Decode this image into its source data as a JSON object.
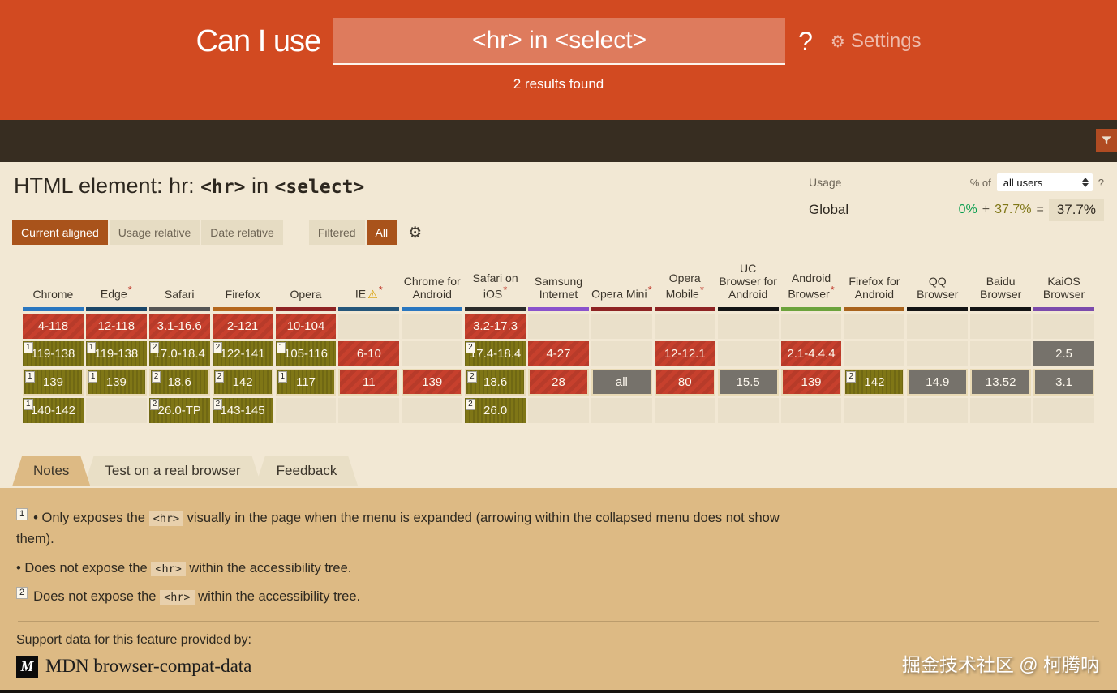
{
  "header": {
    "title": "Can I use",
    "search_value": "<hr> in <select>",
    "question_mark": "?",
    "gear_icon": "⚙",
    "settings_label": "Settings",
    "results_text": "2 results found"
  },
  "feature": {
    "title_segments": [
      {
        "text": "HTML element: hr: "
      },
      {
        "code": "<hr>"
      },
      {
        "text": " in "
      },
      {
        "code": "<select>"
      }
    ]
  },
  "usage": {
    "label": "Usage",
    "percent_of_label": "% of",
    "selected_option": "all users",
    "help": "?",
    "scope": "Global",
    "none_pct": "0%",
    "plus": "+",
    "partial_pct": "37.7%",
    "equals": "=",
    "total_pct": "37.7%"
  },
  "toolbar": {
    "views": [
      {
        "label": "Current aligned",
        "active": true
      },
      {
        "label": "Usage relative",
        "active": false
      },
      {
        "label": "Date relative",
        "active": false
      }
    ],
    "filters": [
      {
        "label": "Filtered",
        "active": false
      },
      {
        "label": "All",
        "active": true
      }
    ],
    "gear_icon": "⚙"
  },
  "table": {
    "asterisk_char": "*",
    "warning_icon": "⚠",
    "status_colors": {
      "not_supported": "#c7402d",
      "partial_support": "#7f7616",
      "unknown": "#76726b"
    },
    "browsers": [
      {
        "name": "Chrome",
        "color": "#2a77c0",
        "asterisk": false,
        "warning": false
      },
      {
        "name": "Edge",
        "color": "#1b4668",
        "asterisk": true,
        "warning": false
      },
      {
        "name": "Safari",
        "color": "#555555",
        "asterisk": false,
        "warning": false
      },
      {
        "name": "Firefox",
        "color": "#b5671d",
        "asterisk": false,
        "warning": false
      },
      {
        "name": "Opera",
        "color": "#8e2323",
        "asterisk": false,
        "warning": false
      },
      {
        "name": "IE",
        "color": "#25567a",
        "asterisk": true,
        "warning": true
      },
      {
        "name": "Chrome for Android",
        "color": "#2a77c0",
        "asterisk": false,
        "warning": false
      },
      {
        "name": "Safari on iOS",
        "color": "#2b2b2b",
        "asterisk": true,
        "warning": false
      },
      {
        "name": "Samsung Internet",
        "color": "#8a52cc",
        "asterisk": false,
        "warning": false
      },
      {
        "name": "Opera Mini",
        "color": "#8e2323",
        "asterisk": true,
        "warning": false
      },
      {
        "name": "Opera Mobile",
        "color": "#8e2323",
        "asterisk": true,
        "warning": false
      },
      {
        "name": "UC Browser for Android",
        "color": "#141414",
        "asterisk": false,
        "warning": false
      },
      {
        "name": "Android Browser",
        "color": "#6ca33c",
        "asterisk": true,
        "warning": false
      },
      {
        "name": "Firefox for Android",
        "color": "#a9631c",
        "asterisk": false,
        "warning": false
      },
      {
        "name": "QQ Browser",
        "color": "#141414",
        "asterisk": false,
        "warning": false
      },
      {
        "name": "Baidu Browser",
        "color": "#141414",
        "asterisk": false,
        "warning": false
      },
      {
        "name": "KaiOS Browser",
        "color": "#7c4bac",
        "asterisk": false,
        "warning": false
      }
    ],
    "rows": [
      {
        "era": "past",
        "current": false,
        "cells": [
          {
            "v": "4-118",
            "s": "n"
          },
          {
            "v": "12-118",
            "s": "n"
          },
          {
            "v": "3.1-16.6",
            "s": "n"
          },
          {
            "v": "2-121",
            "s": "n"
          },
          {
            "v": "10-104",
            "s": "n"
          },
          {
            "s": "e"
          },
          {
            "s": "e"
          },
          {
            "v": "3.2-17.3",
            "s": "n"
          },
          {
            "s": "e"
          },
          {
            "s": "e"
          },
          {
            "s": "e"
          },
          {
            "s": "e"
          },
          {
            "s": "e"
          },
          {
            "s": "e"
          },
          {
            "s": "e"
          },
          {
            "s": "e"
          },
          {
            "s": "e"
          }
        ]
      },
      {
        "era": "recent-past",
        "current": false,
        "cells": [
          {
            "v": "119-138",
            "s": "a",
            "note": "1"
          },
          {
            "v": "119-138",
            "s": "a",
            "note": "1"
          },
          {
            "v": "17.0-18.4",
            "s": "a",
            "note": "2"
          },
          {
            "v": "122-141",
            "s": "a",
            "note": "2"
          },
          {
            "v": "105-116",
            "s": "a",
            "note": "1"
          },
          {
            "v": "6-10",
            "s": "n"
          },
          {
            "s": "e"
          },
          {
            "v": "17.4-18.4",
            "s": "a",
            "note": "2"
          },
          {
            "v": "4-27",
            "s": "n"
          },
          {
            "s": "e"
          },
          {
            "v": "12-12.1",
            "s": "n"
          },
          {
            "s": "e"
          },
          {
            "v": "2.1-4.4.4",
            "s": "n"
          },
          {
            "s": "e"
          },
          {
            "s": "e"
          },
          {
            "s": "e"
          },
          {
            "v": "2.5",
            "s": "u"
          }
        ]
      },
      {
        "era": "current",
        "current": true,
        "cells": [
          {
            "v": "139",
            "s": "a",
            "note": "1"
          },
          {
            "v": "139",
            "s": "a",
            "note": "1"
          },
          {
            "v": "18.6",
            "s": "a",
            "note": "2"
          },
          {
            "v": "142",
            "s": "a",
            "note": "2"
          },
          {
            "v": "117",
            "s": "a",
            "note": "1"
          },
          {
            "v": "11",
            "s": "n"
          },
          {
            "v": "139",
            "s": "n"
          },
          {
            "v": "18.6",
            "s": "a",
            "note": "2"
          },
          {
            "v": "28",
            "s": "n"
          },
          {
            "v": "all",
            "s": "u"
          },
          {
            "v": "80",
            "s": "n"
          },
          {
            "v": "15.5",
            "s": "u"
          },
          {
            "v": "139",
            "s": "n"
          },
          {
            "v": "142",
            "s": "a",
            "note": "2"
          },
          {
            "v": "14.9",
            "s": "u"
          },
          {
            "v": "13.52",
            "s": "u"
          },
          {
            "v": "3.1",
            "s": "u"
          }
        ]
      },
      {
        "era": "future",
        "current": false,
        "cells": [
          {
            "v": "140-142",
            "s": "a",
            "note": "1"
          },
          {
            "s": "e"
          },
          {
            "v": "26.0-TP",
            "s": "a",
            "note": "2"
          },
          {
            "v": "143-145",
            "s": "a",
            "note": "2"
          },
          {
            "s": "e"
          },
          {
            "s": "e"
          },
          {
            "s": "e"
          },
          {
            "v": "26.0",
            "s": "a",
            "note": "2"
          },
          {
            "s": "e"
          },
          {
            "s": "e"
          },
          {
            "s": "e"
          },
          {
            "s": "e"
          },
          {
            "s": "e"
          },
          {
            "s": "e"
          },
          {
            "s": "e"
          },
          {
            "s": "e"
          },
          {
            "s": "e"
          }
        ]
      }
    ]
  },
  "tabs": [
    {
      "label": "Notes",
      "active": true
    },
    {
      "label": "Test on a real browser",
      "active": false
    },
    {
      "label": "Feedback",
      "active": false
    }
  ],
  "notes": [
    {
      "marker": "1",
      "segments": [
        {
          "text": "• Only exposes the "
        },
        {
          "code": "<hr>"
        },
        {
          "text": " visually in the page when the menu is expanded (arrowing within the collapsed menu does not show them)."
        }
      ]
    },
    {
      "marker": null,
      "segments": [
        {
          "text": "• Does not expose the "
        },
        {
          "code": "<hr>"
        },
        {
          "text": " within the accessibility tree."
        }
      ]
    },
    {
      "marker": "2",
      "segments": [
        {
          "text": "Does not expose the "
        },
        {
          "code": "<hr>"
        },
        {
          "text": " within the accessibility tree."
        }
      ]
    }
  ],
  "footer": {
    "support_text": "Support data for this feature provided by:",
    "mdn_logo_letter": "M",
    "mdn_name": "MDN browser-compat-data"
  },
  "watermark": "掘金技术社区 @ 柯腾呐"
}
